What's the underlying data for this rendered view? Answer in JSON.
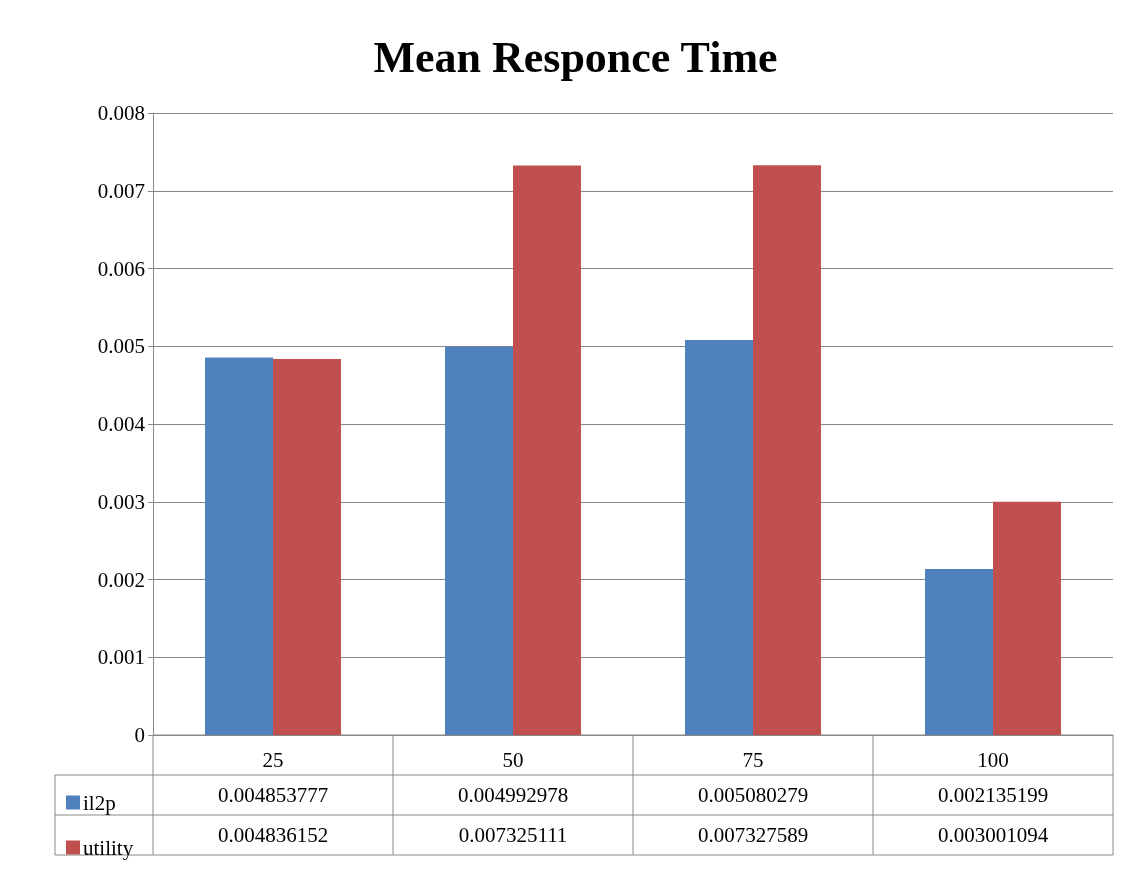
{
  "chart_data": {
    "type": "bar",
    "title": "Mean Responce Time",
    "categories": [
      "25",
      "50",
      "75",
      "100"
    ],
    "series": [
      {
        "name": "il2p",
        "color": "#4f81bd",
        "values": [
          0.004853777,
          0.004992978,
          0.005080279,
          0.002135199
        ]
      },
      {
        "name": "utility",
        "color": "#c0504d",
        "values": [
          0.004836152,
          0.007325111,
          0.007327589,
          0.003001094
        ]
      }
    ],
    "ylim": [
      0,
      0.008
    ],
    "yticks": [
      0,
      0.001,
      0.002,
      0.003,
      0.004,
      0.005,
      0.006,
      0.007,
      0.008
    ],
    "grid": "y",
    "legend": "bottom left",
    "data_labels": true
  }
}
